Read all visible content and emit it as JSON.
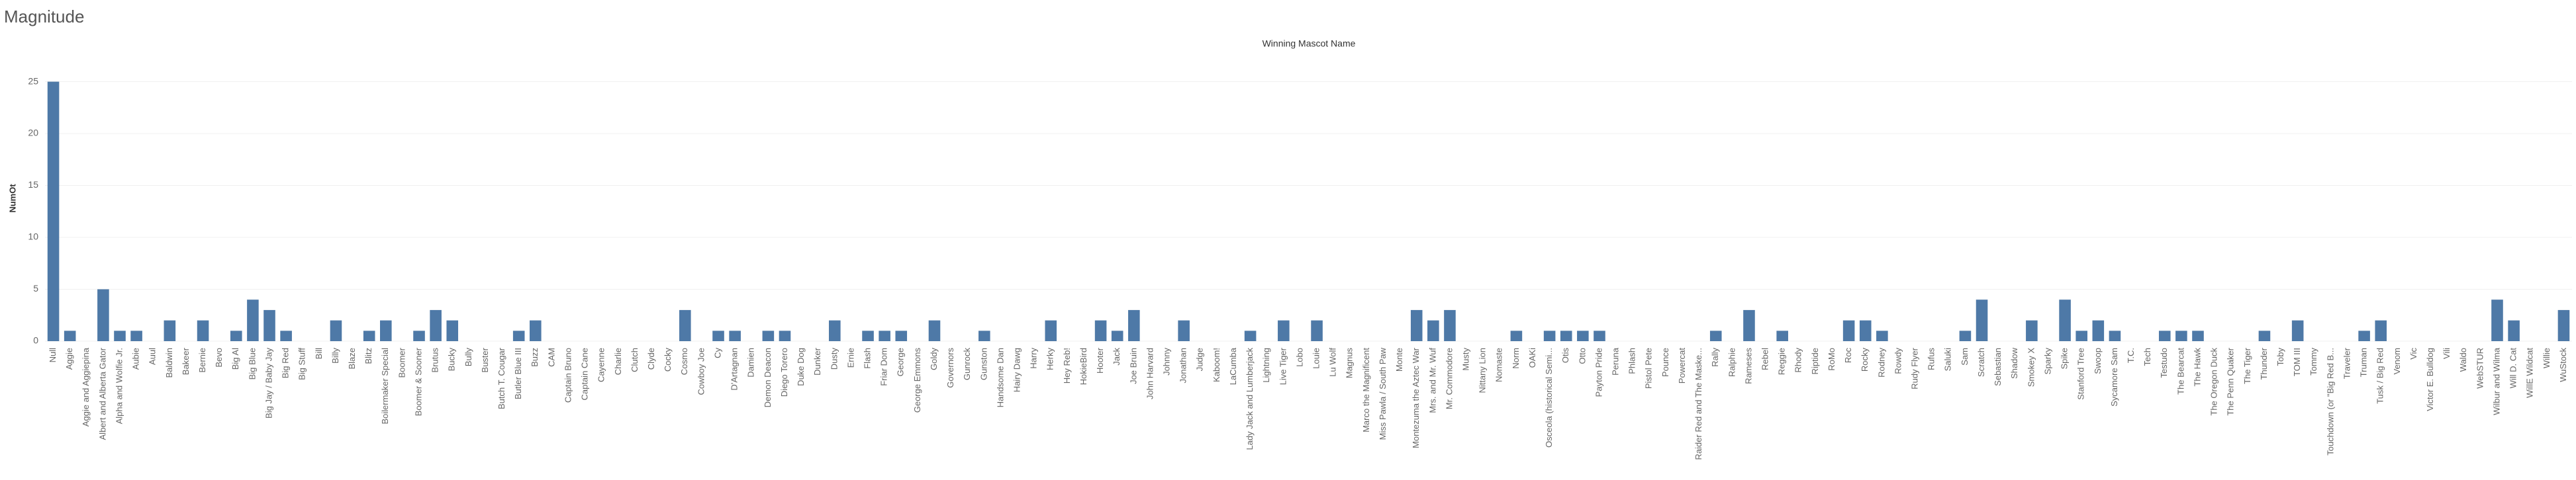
{
  "chart_data": {
    "type": "bar",
    "title": "Magnitude",
    "x_label": "Winning Mascot Name",
    "y_label": "NumOt",
    "categories": [
      "Null",
      "Aggie",
      "Aggie and Aggiepina",
      "Albert and Alberta Gator",
      "Alpha and Wolfie Jr.",
      "Aubie",
      "Auul",
      "Baldwin",
      "Bakeer",
      "Bernie",
      "Bevo",
      "Big Al",
      "Big Blue",
      "Big Jay / Baby Jay",
      "Big Red",
      "Big Stuff",
      "Bill",
      "Billy",
      "Blaze",
      "Blitz",
      "Boilermaker Special",
      "Boomer",
      "Boomer & Sooner",
      "Brutus",
      "Bucky",
      "Bully",
      "Buster",
      "Butch T. Cougar",
      "Butler Blue III",
      "Buzz",
      "CAM",
      "Captain Bruno",
      "Captain Cane",
      "Cayenne",
      "Charlie",
      "Clutch",
      "Clyde",
      "Cocky",
      "Cosmo",
      "Cowboy Joe",
      "Cy",
      "D'Artagnan",
      "Damien",
      "Demon Deacon",
      "Diego Torero",
      "Duke Dog",
      "Dunker",
      "Dusty",
      "Ernie",
      "Flash",
      "Friar Dom",
      "George",
      "George Emmons",
      "Goldy",
      "Governors",
      "Gunrock",
      "Gunston",
      "Handsome Dan",
      "Hairy Dawg",
      "Harry",
      "Herky",
      "Hey Reb!",
      "HokieBird",
      "Hooter",
      "Jack",
      "Joe Bruin",
      "John Harvard",
      "Johnny",
      "Jonathan",
      "Judge",
      "Kaboom!",
      "LaCumba",
      "Lady Jack and Lumberjack",
      "Lightning",
      "Live Tiger",
      "Lobo",
      "Louie",
      "Lu Wolf",
      "Magnus",
      "Marco the Magnificent",
      "Miss Pawla / South Paw",
      "Monte",
      "Montezuma the Aztec War",
      "Mrs. and Mr. Wuf",
      "Mr. Commodore",
      "Musty",
      "Nittany Lion",
      "Nomaste",
      "Norm",
      "OAKi",
      "Osceola (historical Semi...",
      "Otis",
      "Otto",
      "Payton Pride",
      "Peruna",
      "Phlash",
      "Pistol Pete",
      "Pounce",
      "Powercat",
      "Raider Red and The Maske...",
      "Rally",
      "Ralphie",
      "Rameses",
      "Rebel",
      "Reggie",
      "Rhody",
      "Riptide",
      "RoMo",
      "Roc",
      "Rocky",
      "Rodney",
      "Rowdy",
      "Rudy Flyer",
      "Rufus",
      "Saluki",
      "Sam",
      "Scratch",
      "Sebastian",
      "Shadow",
      "Smokey X",
      "Sparky",
      "Spike",
      "Stanford Tree",
      "Swoop",
      "Sycamore Sam",
      "T.C.",
      "Tech",
      "Testudo",
      "The Bearcat",
      "The Hawk",
      "The Oregon Duck",
      "The Penn Quaker",
      "The Tiger",
      "Thunder",
      "Toby",
      "TOM III",
      "Tommy",
      "Touchdown (or \"Big Red B...",
      "Traveler",
      "Truman",
      "Tusk / Big Red",
      "Venom",
      "Vic",
      "Victor E. Bulldog",
      "Vili",
      "Waldo",
      "WebSTUR",
      "Wilbur and Wilma",
      "Will D. Cat",
      "WillE Wildcat",
      "Willie",
      "WuStock"
    ],
    "values": [
      25,
      1,
      0,
      5,
      1,
      1,
      0,
      2,
      0,
      2,
      0,
      1,
      4,
      3,
      1,
      0,
      0,
      2,
      0,
      1,
      2,
      0,
      1,
      3,
      2,
      0,
      0,
      0,
      1,
      2,
      0,
      0,
      0,
      0,
      0,
      0,
      0,
      0,
      3,
      0,
      1,
      1,
      0,
      1,
      1,
      0,
      0,
      2,
      0,
      1,
      1,
      1,
      0,
      2,
      0,
      0,
      1,
      0,
      0,
      0,
      2,
      0,
      0,
      2,
      1,
      3,
      0,
      0,
      2,
      0,
      0,
      0,
      1,
      0,
      2,
      0,
      2,
      0,
      0,
      0,
      0,
      0,
      3,
      2,
      3,
      0,
      0,
      0,
      1,
      0,
      1,
      1,
      1,
      1,
      0,
      0,
      0,
      0,
      0,
      0,
      1,
      0,
      3,
      0,
      1,
      0,
      0,
      0,
      2,
      2,
      1,
      0,
      0,
      0,
      0,
      1,
      4,
      0,
      0,
      2,
      0,
      4,
      1,
      2,
      1,
      0,
      0,
      1,
      1,
      1,
      0,
      0,
      0,
      1,
      0,
      2,
      0,
      0,
      0,
      1,
      2,
      0,
      0,
      0,
      0,
      0,
      0,
      4,
      2,
      0,
      0,
      3
    ],
    "color": "#4e79a7",
    "ylim": [
      0,
      26.5
    ],
    "yticks": [
      0,
      5,
      10,
      15,
      20,
      25
    ],
    "grid": true
  }
}
